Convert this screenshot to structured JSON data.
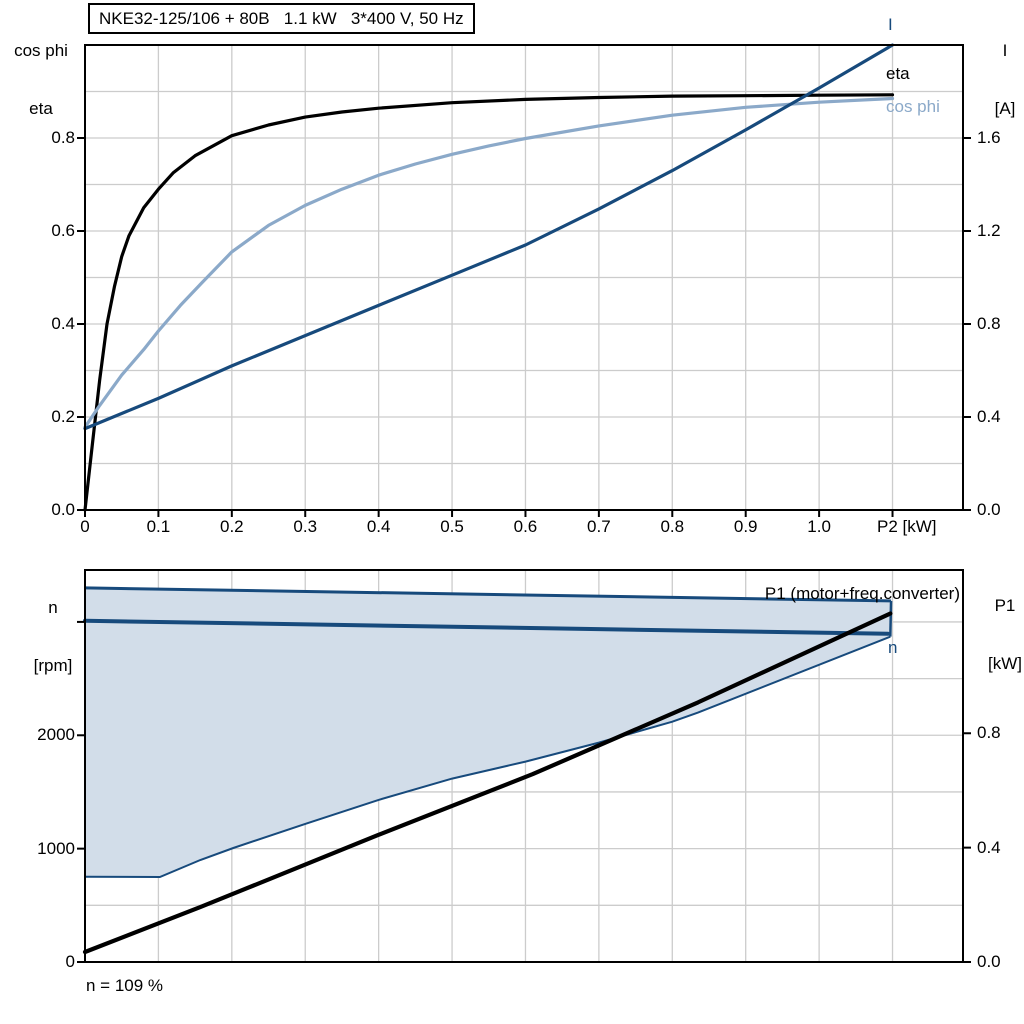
{
  "labels": {
    "top_left_axis_line1": "cos phi",
    "top_left_axis_line2": "eta",
    "top_right_axis_line1": "I",
    "top_right_axis_line2": "[A]",
    "bottom_left_axis_line1": "n",
    "bottom_left_axis_line2": "[rpm]",
    "bottom_right_axis_line1": "P1",
    "bottom_right_axis_line2": "[kW]",
    "curve_I": "I",
    "curve_eta": "eta",
    "curve_cos_phi": "cos phi",
    "curve_P1": "P1 (motor+freq.converter)",
    "curve_n": "n",
    "x_axis_top": "P2 [kW]",
    "note": "n = 109 %"
  },
  "colors": {
    "dark_blue": "#174a7c",
    "light_blue": "#8ba9c9",
    "band_fill": "#d2dde9",
    "grid": "#cccccc",
    "axis": "#000000",
    "background": "#ffffff"
  },
  "chart_data": [
    {
      "type": "line",
      "title": "NKE32-125/106 + 80B   1.1 kW   3*400 V, 50 Hz",
      "xlabel": "P2 [kW]",
      "ylabel_left": "cos phi / eta",
      "ylabel_right": "I [A]",
      "xlim": [
        0,
        1.196
      ],
      "ylim_left": [
        0,
        1.0
      ],
      "ylim_right": [
        0,
        2.0
      ],
      "grid": true,
      "legend_position": "right-inside",
      "xticks": [
        0,
        0.1,
        0.2,
        0.3,
        0.4,
        0.5,
        0.6,
        0.7,
        0.8,
        0.9,
        1.0,
        1.1
      ],
      "xtick_labels": [
        "0",
        "0.1",
        "0.2",
        "0.3",
        "0.4",
        "0.5",
        "0.6",
        "0.7",
        "0.8",
        "0.9",
        "1.0",
        ""
      ],
      "grid_x": [
        0.1,
        0.2,
        0.3,
        0.4,
        0.5,
        0.6,
        0.7,
        0.8,
        0.9,
        1.0,
        1.1
      ],
      "grid_left": [
        0.1,
        0.2,
        0.3,
        0.4,
        0.5,
        0.6,
        0.7,
        0.8,
        0.9
      ],
      "yticks_left": {
        "values": [
          0,
          0.2,
          0.4,
          0.6,
          0.8
        ],
        "labels": [
          "0.0",
          "0.2",
          "0.4",
          "0.6",
          "0.8"
        ]
      },
      "yticks_right": {
        "values": [
          0,
          0.4,
          0.8,
          1.2,
          1.6
        ],
        "labels": [
          "0.0",
          "0.4",
          "0.8",
          "1.2",
          "1.6"
        ]
      },
      "series": [
        {
          "name": "eta",
          "axis": "left",
          "color": "#000000",
          "w": 3.2,
          "points": [
            [
              0,
              0
            ],
            [
              0.01,
              0.14
            ],
            [
              0.02,
              0.28
            ],
            [
              0.03,
              0.4
            ],
            [
              0.04,
              0.48
            ],
            [
              0.05,
              0.545
            ],
            [
              0.06,
              0.59
            ],
            [
              0.08,
              0.65
            ],
            [
              0.1,
              0.69
            ],
            [
              0.12,
              0.725
            ],
            [
              0.15,
              0.762
            ],
            [
              0.2,
              0.805
            ],
            [
              0.25,
              0.828
            ],
            [
              0.3,
              0.845
            ],
            [
              0.35,
              0.856
            ],
            [
              0.4,
              0.864
            ],
            [
              0.5,
              0.876
            ],
            [
              0.6,
              0.883
            ],
            [
              0.7,
              0.887
            ],
            [
              0.8,
              0.89
            ],
            [
              0.9,
              0.891
            ],
            [
              1.0,
              0.892
            ],
            [
              1.1,
              0.893
            ]
          ]
        },
        {
          "name": "cos phi",
          "axis": "left",
          "color": "#8ba9c9",
          "w": 3.2,
          "points": [
            [
              0,
              0.178
            ],
            [
              0.02,
              0.225
            ],
            [
              0.05,
              0.29
            ],
            [
              0.08,
              0.345
            ],
            [
              0.1,
              0.385
            ],
            [
              0.13,
              0.44
            ],
            [
              0.16,
              0.49
            ],
            [
              0.2,
              0.555
            ],
            [
              0.25,
              0.612
            ],
            [
              0.3,
              0.655
            ],
            [
              0.35,
              0.69
            ],
            [
              0.4,
              0.72
            ],
            [
              0.45,
              0.744
            ],
            [
              0.5,
              0.765
            ],
            [
              0.55,
              0.783
            ],
            [
              0.6,
              0.799
            ],
            [
              0.7,
              0.826
            ],
            [
              0.8,
              0.849
            ],
            [
              0.9,
              0.866
            ],
            [
              1.0,
              0.877
            ],
            [
              1.1,
              0.885
            ]
          ]
        },
        {
          "name": "I",
          "axis": "right",
          "color": "#174a7c",
          "w": 3.2,
          "points": [
            [
              0,
              0.35
            ],
            [
              0.1,
              0.48
            ],
            [
              0.2,
              0.62
            ],
            [
              0.3,
              0.75
            ],
            [
              0.4,
              0.88
            ],
            [
              0.5,
              1.01
            ],
            [
              0.6,
              1.14
            ],
            [
              0.7,
              1.295
            ],
            [
              0.8,
              1.46
            ],
            [
              0.9,
              1.635
            ],
            [
              1.0,
              1.815
            ],
            [
              1.1,
              2.0
            ]
          ]
        }
      ]
    },
    {
      "type": "line",
      "title": "",
      "xlabel": "",
      "ylabel_left": "n [rpm]",
      "ylabel_right": "P1 [kW]",
      "xlim": [
        0,
        1.196
      ],
      "ylim_left": [
        0,
        3458
      ],
      "ylim_right": [
        0,
        1.371
      ],
      "grid": true,
      "annotation": "n = 109 %",
      "grid_x": [
        0.1,
        0.2,
        0.3,
        0.4,
        0.5,
        0.6,
        0.7,
        0.8,
        0.9,
        1.0,
        1.1
      ],
      "grid_left": [
        500,
        1000,
        1500,
        2000,
        2500,
        3000
      ],
      "yticks_left": {
        "values": [
          0,
          1000,
          2000,
          3000
        ],
        "labels": [
          "0",
          "1000",
          "2000",
          ""
        ]
      },
      "yticks_right": {
        "values": [
          0,
          0.4,
          0.8
        ],
        "labels": [
          "0.0",
          "0.4",
          "0.8"
        ]
      },
      "band": {
        "fill": "#d2dde9",
        "edge_color": "#174a7c",
        "upper_rpm": [
          [
            0,
            3300
          ],
          [
            1.098,
            3185
          ]
        ],
        "lower_rpm": [
          [
            0,
            752
          ],
          [
            0.102,
            750
          ],
          [
            0.157,
            900
          ],
          [
            0.202,
            1006
          ],
          [
            0.3,
            1218
          ],
          [
            0.4,
            1430
          ],
          [
            0.5,
            1618
          ],
          [
            0.6,
            1768
          ],
          [
            0.7,
            1935
          ],
          [
            0.8,
            2120
          ],
          [
            0.835,
            2200
          ],
          [
            1.097,
            2870
          ]
        ]
      },
      "series": [
        {
          "name": "n",
          "axis": "left",
          "color": "#174a7c",
          "w": 4,
          "points": [
            [
              0,
              3010
            ],
            [
              1.094,
              2895
            ]
          ]
        },
        {
          "name": "P1 (motor+freq.converter)",
          "axis": "right",
          "color": "#000000",
          "w": 4.2,
          "points": [
            [
              0,
              0.035
            ],
            [
              0.157,
              0.192
            ],
            [
              0.399,
              0.444
            ],
            [
              0.61,
              0.657
            ],
            [
              0.835,
              0.908
            ],
            [
              1.097,
              1.219
            ]
          ]
        }
      ]
    }
  ]
}
